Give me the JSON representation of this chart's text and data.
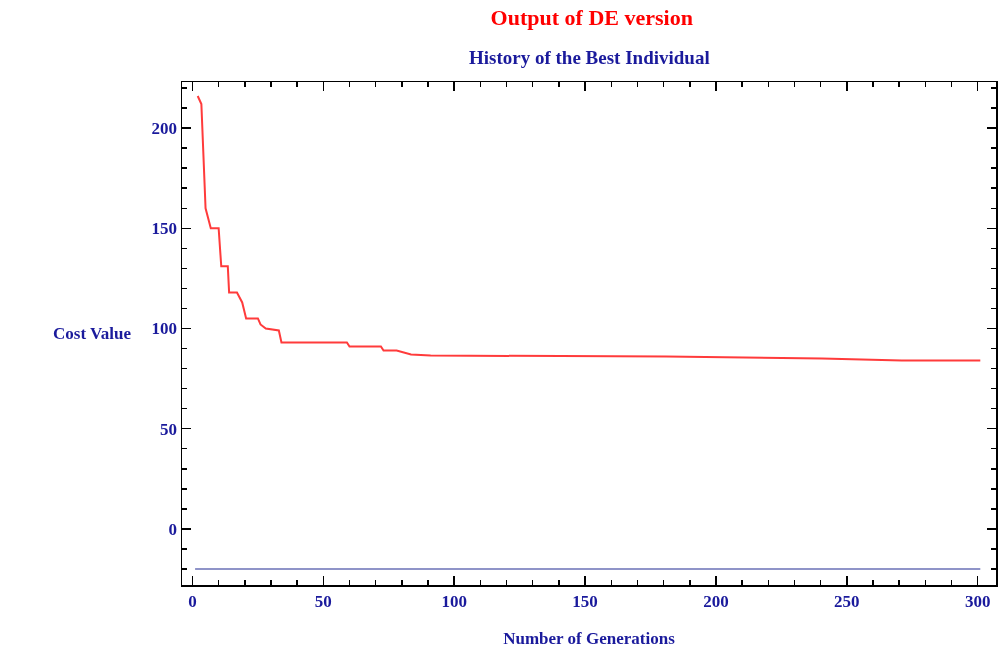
{
  "chart_data": {
    "type": "line",
    "title": "Output of DE version",
    "subtitle": "History of the Best Individual",
    "xlabel": "Number of Generations",
    "ylabel": "Cost Value",
    "xlim": [
      -4,
      307
    ],
    "ylim": [
      -28,
      223
    ],
    "xticks": [
      0,
      {
        "value": 10,
        "label": null
      },
      {
        "value": 20,
        "label": null
      },
      {
        "value": 30,
        "label": null
      },
      {
        "value": 40,
        "label": null
      },
      50,
      {
        "value": 60,
        "label": null
      },
      {
        "value": 70,
        "label": null
      },
      {
        "value": 80,
        "label": null
      },
      {
        "value": 90,
        "label": null
      },
      100,
      {
        "value": 110,
        "label": null
      },
      {
        "value": 120,
        "label": null
      },
      {
        "value": 130,
        "label": null
      },
      {
        "value": 140,
        "label": null
      },
      150,
      {
        "value": 160,
        "label": null
      },
      {
        "value": 170,
        "label": null
      },
      {
        "value": 180,
        "label": null
      },
      {
        "value": 190,
        "label": null
      },
      200,
      {
        "value": 210,
        "label": null
      },
      {
        "value": 220,
        "label": null
      },
      {
        "value": 230,
        "label": null
      },
      {
        "value": 240,
        "label": null
      },
      250,
      {
        "value": 260,
        "label": null
      },
      {
        "value": 270,
        "label": null
      },
      {
        "value": 280,
        "label": null
      },
      {
        "value": 290,
        "label": null
      },
      300
    ],
    "yticks": [
      {
        "value": -20,
        "label": null
      },
      {
        "value": -10,
        "label": null
      },
      0,
      {
        "value": 10,
        "label": null
      },
      {
        "value": 20,
        "label": null
      },
      {
        "value": 30,
        "label": null
      },
      {
        "value": 40,
        "label": null
      },
      50,
      {
        "value": 60,
        "label": null
      },
      {
        "value": 70,
        "label": null
      },
      {
        "value": 80,
        "label": null
      },
      {
        "value": 90,
        "label": null
      },
      100,
      {
        "value": 110,
        "label": null
      },
      {
        "value": 120,
        "label": null
      },
      {
        "value": 130,
        "label": null
      },
      {
        "value": 140,
        "label": null
      },
      150,
      {
        "value": 160,
        "label": null
      },
      {
        "value": 170,
        "label": null
      },
      {
        "value": 180,
        "label": null
      },
      {
        "value": 190,
        "label": null
      },
      200,
      {
        "value": 210,
        "label": null
      },
      {
        "value": 220,
        "label": null
      }
    ],
    "grid": false,
    "marker": "none",
    "line_style": "solid",
    "series": [
      {
        "color": "#ff3b3b",
        "x": [
          2,
          3.4,
          5,
          7,
          10,
          11,
          13.5,
          14,
          17,
          19,
          20.5,
          25,
          26,
          28,
          33,
          34,
          59,
          60,
          72,
          73,
          78,
          83.5,
          91,
          181,
          240.5,
          271,
          301
        ],
        "values": [
          216,
          212,
          160,
          150,
          150,
          131,
          131,
          118,
          118,
          113,
          105,
          105,
          102,
          100,
          99,
          93,
          93,
          91,
          91,
          89,
          89,
          87,
          86.5,
          86,
          85,
          84,
          84
        ]
      },
      {
        "color": "#8f94c8",
        "x": [
          1,
          301
        ],
        "values": [
          -20,
          -20
        ]
      }
    ]
  }
}
